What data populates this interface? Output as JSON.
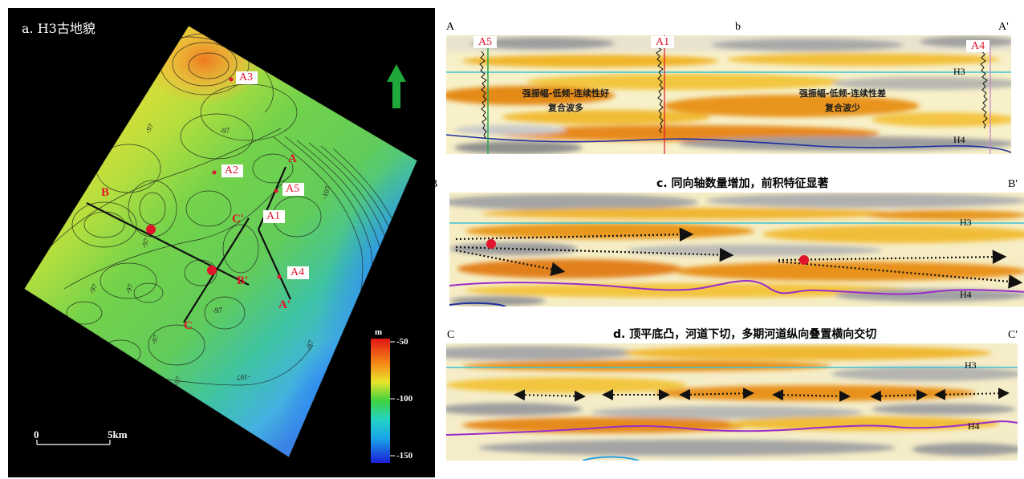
{
  "map": {
    "title": "a. H3古地貌",
    "wells": [
      "A3",
      "A2",
      "A5",
      "A1",
      "A4"
    ],
    "line_labels": {
      "A": "A",
      "A_prime": "A'",
      "B": "B",
      "B_prime": "B'",
      "C": "C",
      "C_prime": "C'"
    },
    "contour_labels": [
      "-97",
      "-97",
      "-97",
      "-97",
      "-97",
      "-97",
      "-97",
      "-97",
      "-107",
      "-107",
      "-97"
    ],
    "colorbar": {
      "unit": "m",
      "ticks": [
        "-50",
        "-100",
        "-150"
      ]
    },
    "scale": {
      "start": "0",
      "end": "5km"
    },
    "north_arrow_color": "#1fa93b"
  },
  "section_b": {
    "left": "A",
    "center": "b",
    "right": "A'",
    "wells": [
      "A5",
      "A1",
      "A4"
    ],
    "horizons": [
      "H3",
      "H4"
    ],
    "note_left_line1": "强振幅-低频-连续性好",
    "note_left_line2": "复合波多",
    "note_right_line1": "强振幅-低频-连续性差",
    "note_right_line2": "复合波少"
  },
  "section_c": {
    "left": "B",
    "right": "B'",
    "title": "c. 同向轴数量增加，前积特征显著",
    "horizons": [
      "H3",
      "H4"
    ]
  },
  "section_d": {
    "left": "C",
    "right": "C'",
    "title": "d. 顶平底凸，河道下切，多期河道纵向叠置横向交切",
    "horizons": [
      "H3",
      "H4"
    ]
  },
  "colors": {
    "h3": "#3cc2d6",
    "h4_b": "#1d2fa0",
    "h4_cd": "#9b2cc9",
    "well_red": "#e0142a"
  }
}
